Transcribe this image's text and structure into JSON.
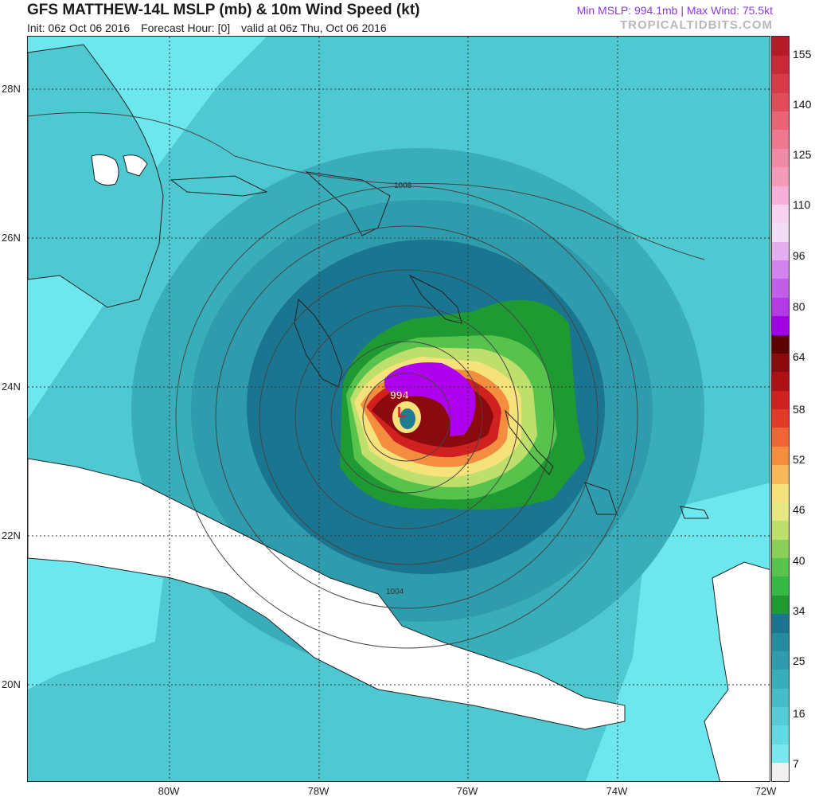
{
  "header": {
    "title": "GFS MATTHEW-14L MSLP (mb) & 10m Wind Speed (kt)",
    "init": "Init: 06z Oct 06 2016",
    "forecast_hour": "Forecast Hour: [0]",
    "valid": "valid at 06z Thu, Oct 06 2016",
    "stats": "Min MSLP: 994.1mb | Max Wind: 75.5kt",
    "brand": "TROPICALTIDBITS.COM"
  },
  "map": {
    "lat_labels": [
      "28N",
      "26N",
      "24N",
      "22N",
      "20N"
    ],
    "lon_labels": [
      "80W",
      "78W",
      "76W",
      "74W",
      "72W"
    ],
    "low_label": "L",
    "min_pressure_label": "994",
    "contour_labels": [
      "1008",
      "1004"
    ],
    "colors": {
      "land": "#ffffff",
      "wind_7": "#6ee6ee",
      "wind_16": "#4fc9d1",
      "wind_25": "#32a6b8",
      "wind_34": "#1f7a92",
      "wind_tropical_storm": "#2ba832",
      "wind_hurricane": "#b000f0",
      "contour_line": "#444444"
    }
  },
  "colorbar": {
    "labels": [
      "155",
      "140",
      "125",
      "110",
      "96",
      "80",
      "64",
      "58",
      "52",
      "46",
      "40",
      "34",
      "25",
      "16",
      "7"
    ],
    "colors": [
      "#f0f0f0",
      "#7ae8ef",
      "#62dae3",
      "#55ccd5",
      "#48bdc8",
      "#3aadbb",
      "#2e9cad",
      "#258c9f",
      "#1a7590",
      "#1f9a33",
      "#36b845",
      "#57c34d",
      "#8ccf58",
      "#bfdf6c",
      "#e6e882",
      "#f5e27a",
      "#f6b85a",
      "#f38e3f",
      "#ef6534",
      "#e23a26",
      "#d0201f",
      "#ad1015",
      "#8a0a0d",
      "#5c0000",
      "#a000e6",
      "#b43ae8",
      "#c25fe9",
      "#d284ee",
      "#e3afee",
      "#f2dcf6",
      "#f8d0f0",
      "#f5b0d8",
      "#f39cba",
      "#f18aa5",
      "#ee7890",
      "#ea6377",
      "#e24c5a",
      "#d73a48",
      "#c82838",
      "#b51a28"
    ]
  }
}
